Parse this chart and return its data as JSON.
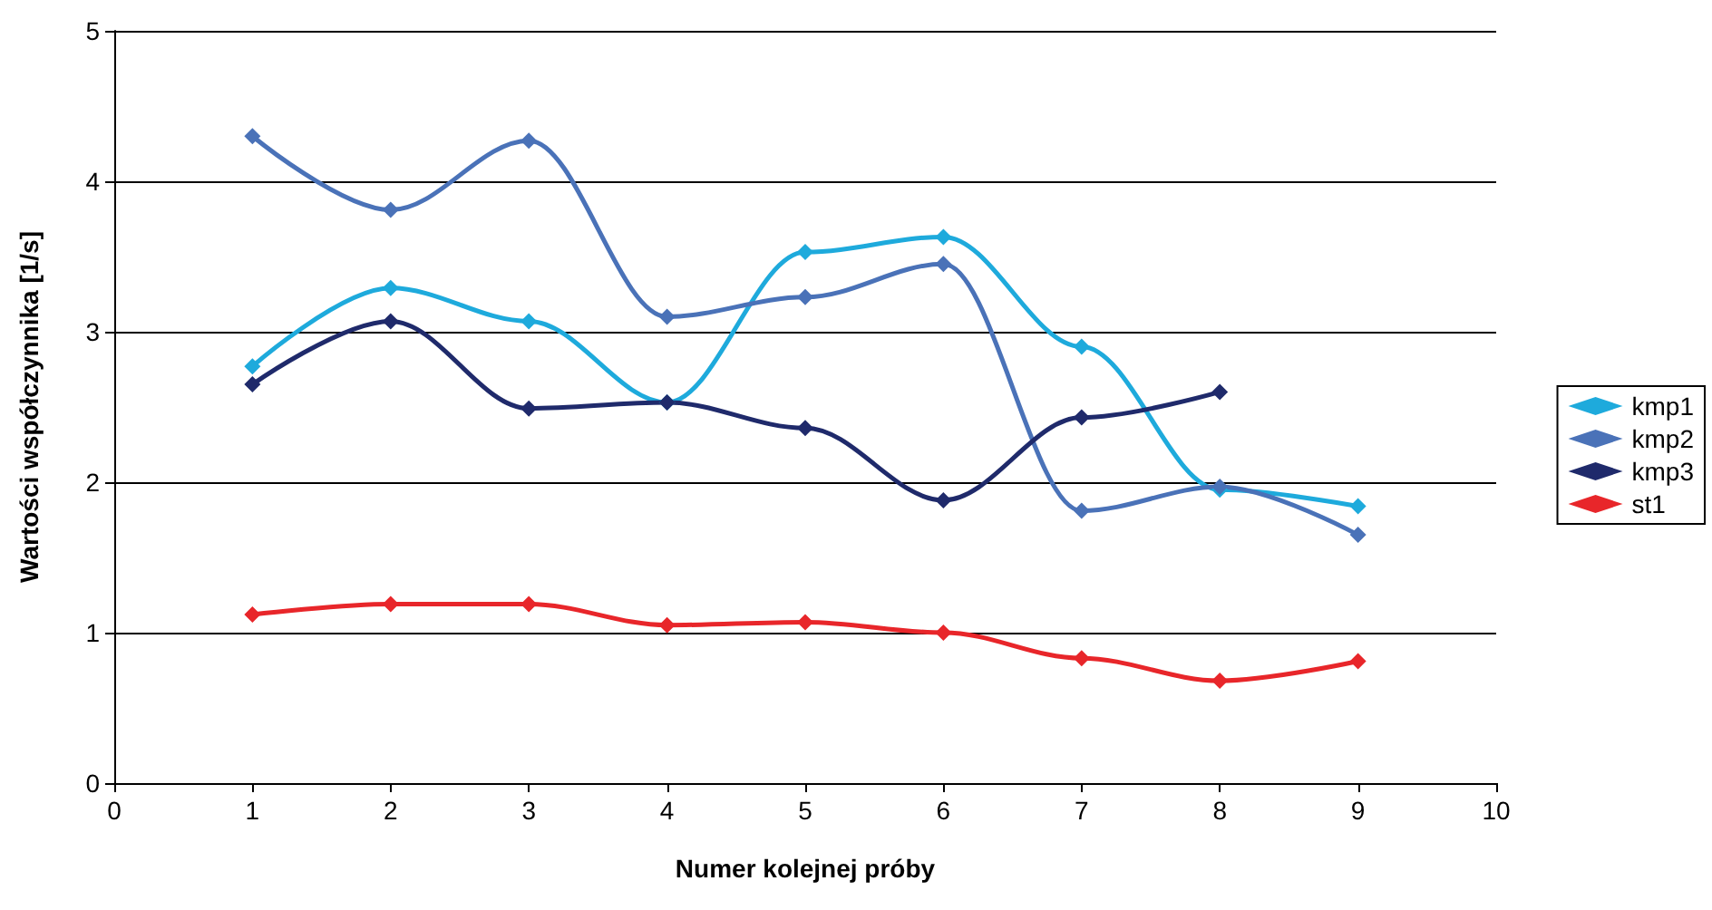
{
  "chart_data": {
    "type": "line",
    "xlabel": "Numer kolejnej próby",
    "ylabel": "Wartości współczynnika [1/s]",
    "xlim": [
      0,
      10
    ],
    "xticks": [
      0,
      1,
      2,
      3,
      4,
      5,
      6,
      7,
      8,
      9,
      10
    ],
    "ylim": [
      0,
      5
    ],
    "yticks": [
      0,
      1,
      2,
      3,
      4,
      5
    ],
    "grid": "y",
    "legend": "right",
    "marker": "diamond",
    "line_style": "solid",
    "series": [
      {
        "name": "kmp1",
        "color": "#1eaadc",
        "x": [
          1,
          2,
          3,
          4,
          5,
          6,
          7,
          8,
          9
        ],
        "values": [
          2.77,
          3.29,
          3.07,
          2.53,
          3.53,
          3.63,
          2.9,
          1.95,
          1.84
        ]
      },
      {
        "name": "kmp2",
        "color": "#4a72b8",
        "x": [
          1,
          2,
          3,
          4,
          5,
          6,
          7,
          8,
          9
        ],
        "values": [
          4.3,
          3.81,
          4.27,
          3.1,
          3.23,
          3.45,
          1.81,
          1.97,
          1.65
        ]
      },
      {
        "name": "kmp3",
        "color": "#1f2a6b",
        "x": [
          1,
          2,
          3,
          4,
          5,
          6,
          7,
          8
        ],
        "values": [
          2.65,
          3.07,
          2.49,
          2.53,
          2.36,
          1.88,
          2.43,
          2.6
        ]
      },
      {
        "name": "st1",
        "color": "#e8262a",
        "x": [
          1,
          2,
          3,
          4,
          5,
          6,
          7,
          8,
          9
        ],
        "values": [
          1.12,
          1.19,
          1.19,
          1.05,
          1.07,
          1.0,
          0.83,
          0.68,
          0.81
        ]
      }
    ]
  }
}
